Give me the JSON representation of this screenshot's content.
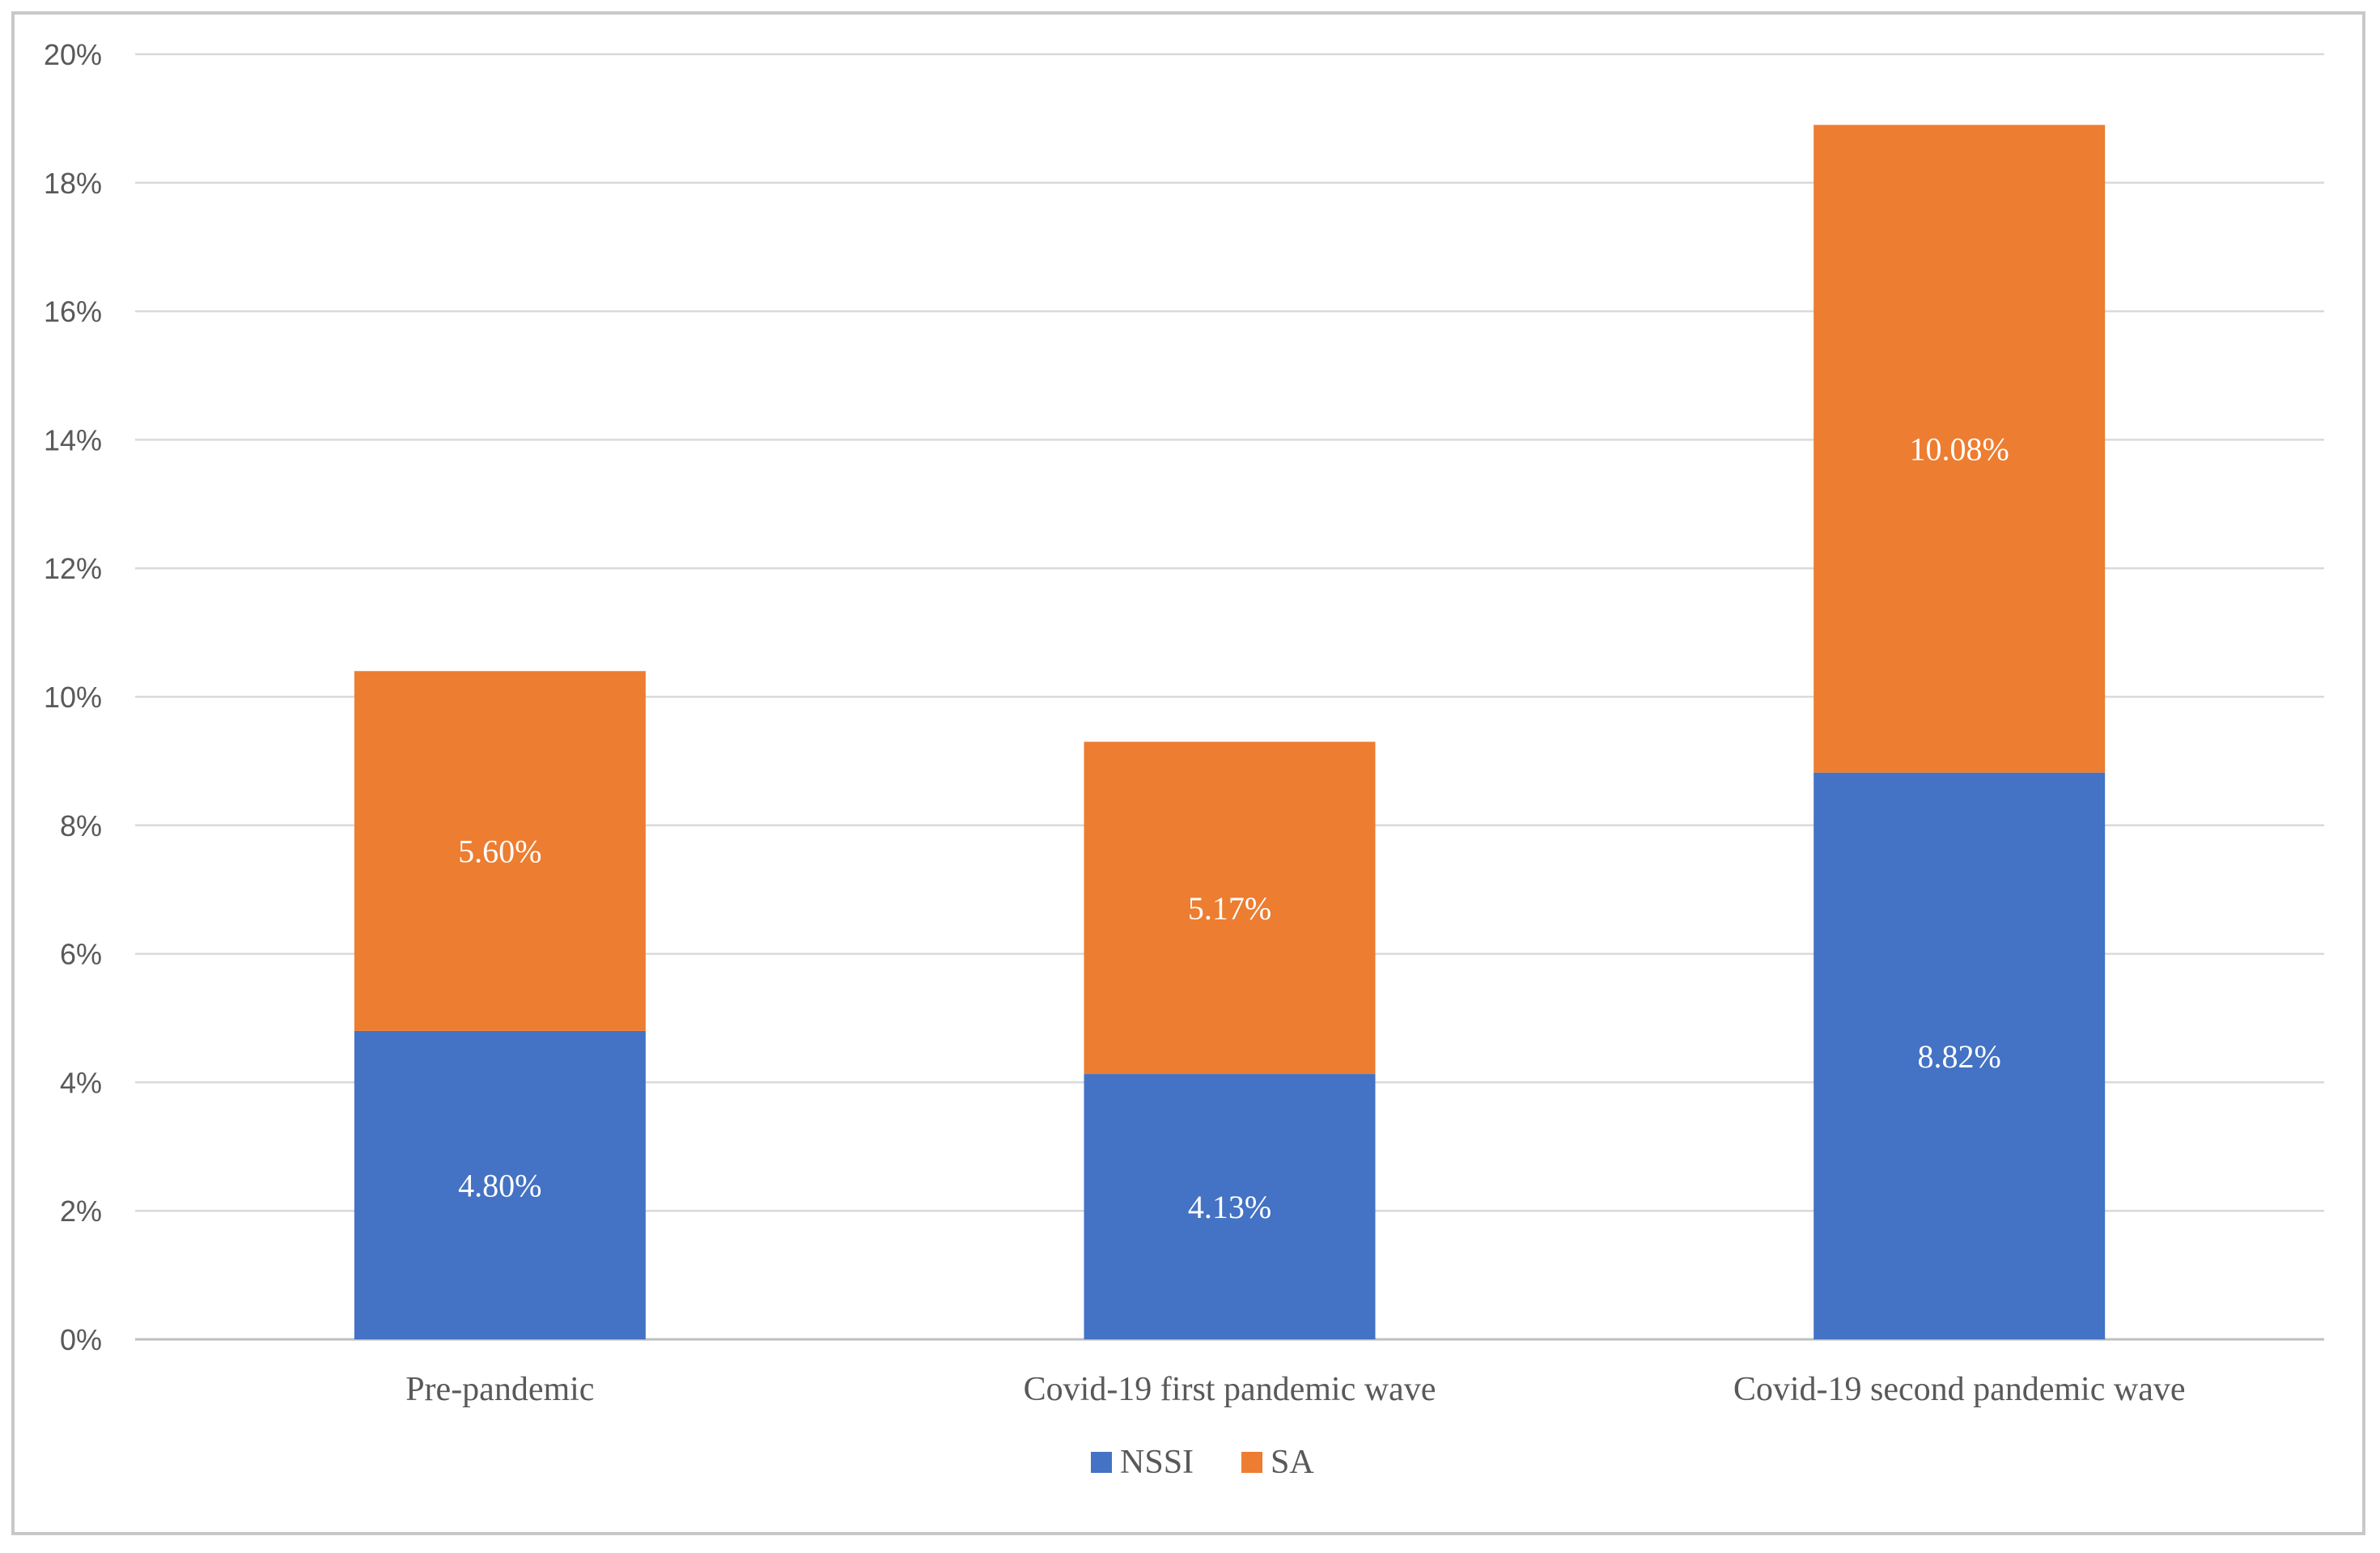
{
  "chart_data": {
    "type": "bar",
    "stacked": true,
    "title": "",
    "xlabel": "",
    "ylabel": "",
    "ylim": [
      0,
      20
    ],
    "y_ticks": [
      0,
      2,
      4,
      6,
      8,
      10,
      12,
      14,
      16,
      18,
      20
    ],
    "y_tick_labels": [
      "0%",
      "2%",
      "4%",
      "6%",
      "8%",
      "10%",
      "12%",
      "14%",
      "16%",
      "18%",
      "20%"
    ],
    "grid": true,
    "legend_position": "bottom-center",
    "categories": [
      "Pre-pandemic",
      "Covid-19 first pandemic wave",
      "Covid-19 second pandemic wave"
    ],
    "series": [
      {
        "name": "NSSI",
        "color": "#4472C4",
        "values": [
          4.8,
          4.13,
          8.82
        ],
        "labels": [
          "4.80%",
          "4.13%",
          "8.82%"
        ]
      },
      {
        "name": "SA",
        "color": "#ED7D31",
        "values": [
          5.6,
          5.17,
          10.08
        ],
        "labels": [
          "5.60%",
          "5.17%",
          "10.08%"
        ]
      }
    ]
  }
}
